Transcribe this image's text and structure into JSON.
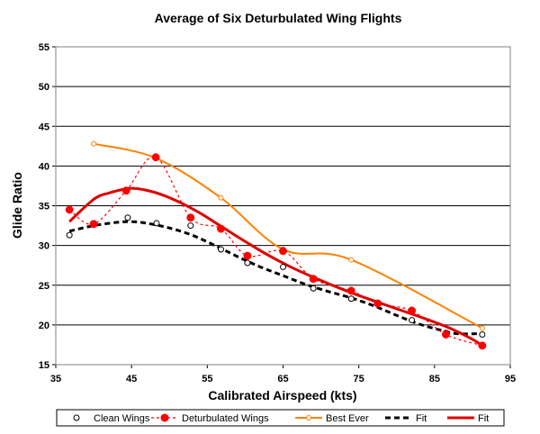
{
  "chart_data": {
    "type": "scatter",
    "title": "Average of Six Deturbulated Wing Flights",
    "xlabel": "Calibrated Airspeed (kts)",
    "ylabel": "Glide Ratio",
    "xlim": [
      35,
      95
    ],
    "ylim": [
      15,
      55
    ],
    "xticks": [
      "35",
      "45",
      "55",
      "65",
      "75",
      "85",
      "95"
    ],
    "yticks": [
      "15",
      "20",
      "25",
      "30",
      "35",
      "40",
      "45",
      "50",
      "55"
    ],
    "grid": "horizontal",
    "legend_position": "bottom",
    "colors": {
      "clean": "#000000",
      "deturbulated": "#ff0000",
      "best_ever": "#ff8000",
      "fit_black": "#000000",
      "fit_red": "#dd0000"
    },
    "series": [
      {
        "name": "Clean Wings",
        "key": "clean",
        "style": "markers-open-circle",
        "x": [
          36.8,
          40.0,
          44.5,
          48.3,
          52.8,
          56.8,
          60.3,
          65.0,
          69.0,
          74.0,
          82.0,
          86.5,
          91.3
        ],
        "y": [
          31.3,
          32.8,
          33.5,
          32.8,
          32.5,
          29.5,
          27.8,
          27.3,
          24.6,
          23.3,
          20.6,
          19.0,
          18.8
        ]
      },
      {
        "name": "Deturbulated Wings",
        "key": "deturbulated",
        "style": "dashed-line-filled-markers",
        "x": [
          36.8,
          40.0,
          44.3,
          48.2,
          52.8,
          56.8,
          60.3,
          65.0,
          69.0,
          74.0,
          77.5,
          82.0,
          86.5,
          91.3
        ],
        "y": [
          34.5,
          32.7,
          36.9,
          41.1,
          33.5,
          32.1,
          28.7,
          29.3,
          25.8,
          24.3,
          22.7,
          21.8,
          18.8,
          17.4
        ]
      },
      {
        "name": "Best Ever",
        "key": "best_ever",
        "style": "line-open-markers",
        "x": [
          40.0,
          48.2,
          56.8,
          65.0,
          74.0,
          91.3
        ],
        "y": [
          42.8,
          41.0,
          36.0,
          29.5,
          28.2,
          19.6
        ]
      },
      {
        "name": "Fit",
        "key": "fit_black",
        "style": "dashed-fit",
        "x": [
          36.8,
          40,
          43,
          45,
          47,
          50,
          53,
          56,
          59,
          62,
          65,
          68,
          71,
          74,
          77,
          80,
          83,
          86,
          88,
          91.3
        ],
        "y": [
          31.8,
          32.5,
          32.9,
          33.0,
          32.8,
          32.2,
          31.3,
          30.0,
          28.6,
          27.3,
          26.2,
          25.1,
          24.2,
          23.4,
          22.4,
          21.2,
          20.1,
          19.3,
          18.9,
          18.9
        ]
      },
      {
        "name": "Fit",
        "key": "fit_red",
        "style": "solid-fit",
        "x": [
          36.8,
          40,
          42,
          45,
          48,
          51,
          54,
          57,
          60,
          63,
          66,
          69,
          72,
          75,
          78,
          81,
          84,
          87,
          90,
          91.3
        ],
        "y": [
          33.0,
          35.8,
          36.6,
          37.2,
          36.7,
          35.6,
          34.1,
          32.3,
          30.5,
          28.8,
          27.3,
          26.0,
          24.8,
          23.7,
          22.7,
          21.7,
          20.7,
          19.6,
          18.2,
          17.4
        ]
      }
    ]
  }
}
